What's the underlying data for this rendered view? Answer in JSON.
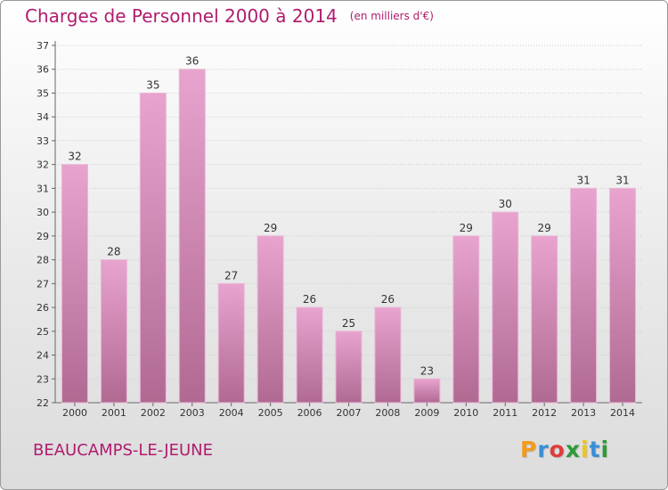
{
  "title": "Charges de Personnel 2000 à 2014",
  "title_unit": "(en milliers d'€)",
  "commune": "BEAUCAMPS-LE-JEUNE",
  "logo": {
    "letters": [
      "P",
      "r",
      "o",
      "x",
      "i",
      "t",
      "i"
    ],
    "colors": [
      "#f39a1a",
      "#3a8fd6",
      "#e03b3b",
      "#2e9a3a",
      "#f0c419",
      "#3a8fd6",
      "#2e9a3a"
    ]
  },
  "chart_data": {
    "type": "bar",
    "categories": [
      "2000",
      "2001",
      "2002",
      "2003",
      "2004",
      "2005",
      "2006",
      "2007",
      "2008",
      "2009",
      "2010",
      "2011",
      "2012",
      "2013",
      "2014"
    ],
    "values": [
      32,
      28,
      35,
      36,
      27,
      29,
      26,
      25,
      26,
      23,
      29,
      30,
      29,
      31,
      31
    ],
    "ylim": [
      22,
      37
    ],
    "yticks": [
      22,
      23,
      24,
      25,
      26,
      27,
      28,
      29,
      30,
      31,
      32,
      33,
      34,
      35,
      36,
      37
    ],
    "grid": true,
    "bar_color_top": "#e8a3cf",
    "bar_color_bottom": "#b06a92",
    "title": "Charges de Personnel 2000 à 2014",
    "xlabel": "",
    "ylabel": ""
  }
}
